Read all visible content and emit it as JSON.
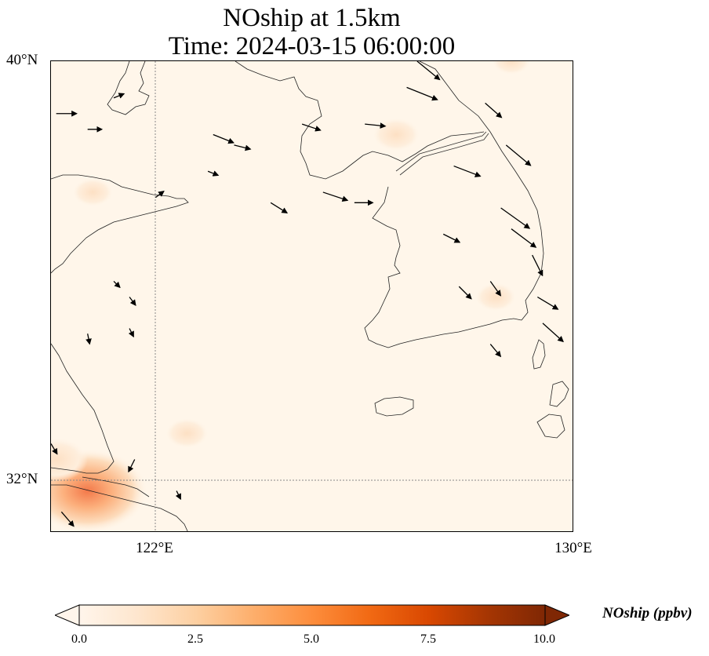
{
  "title": {
    "line1": "NOship at 1.5km",
    "line2": "Time: 2024-03-15 06:00:00"
  },
  "axes": {
    "lat_labels": [
      "40°N",
      "32°N"
    ],
    "lon_labels": [
      "122°E",
      "130°E"
    ],
    "lon_range": [
      120,
      130
    ],
    "lat_range": [
      31,
      40
    ]
  },
  "colorbar": {
    "label": "NOship (ppbv)",
    "ticks": [
      "0.0",
      "2.5",
      "5.0",
      "7.5",
      "10.0"
    ],
    "range": [
      0,
      10
    ],
    "colormap": [
      "#fff5eb",
      "#fee6ce",
      "#fdd0a2",
      "#fdae6b",
      "#fd8d3c",
      "#f16913",
      "#d94801",
      "#a63603",
      "#7f2704"
    ],
    "extend": "both"
  },
  "chart_data": {
    "type": "heatmap",
    "title": "NOship at 1.5km Time: 2024-03-15 06:00:00",
    "variable": "NOship (ppbv)",
    "x": [
      120,
      121,
      122,
      123,
      124,
      125,
      126,
      127,
      128,
      129,
      130
    ],
    "y": [
      40,
      39,
      38,
      37,
      36,
      35,
      34,
      33,
      32,
      31
    ],
    "grid_visible": true,
    "hotspots": [
      {
        "lon": 120.7,
        "lat": 31.8,
        "value": 4.2
      },
      {
        "lon": 120.1,
        "lat": 32.4,
        "value": 1.6
      },
      {
        "lon": 122.6,
        "lat": 32.9,
        "value": 0.7
      },
      {
        "lon": 120.8,
        "lat": 37.5,
        "value": 0.6
      },
      {
        "lon": 126.6,
        "lat": 38.6,
        "value": 0.9
      },
      {
        "lon": 128.5,
        "lat": 35.5,
        "value": 0.6
      },
      {
        "lon": 128.8,
        "lat": 40.0,
        "value": 0.5
      }
    ],
    "wind_vectors": [
      {
        "lon": 120.1,
        "lat": 39.0,
        "u": 1.0,
        "v": 0.0
      },
      {
        "lon": 120.7,
        "lat": 38.7,
        "u": 0.7,
        "v": 0.0
      },
      {
        "lon": 121.2,
        "lat": 39.3,
        "u": 0.5,
        "v": 0.2
      },
      {
        "lon": 123.1,
        "lat": 38.6,
        "u": 1.0,
        "v": -0.4
      },
      {
        "lon": 123.5,
        "lat": 38.4,
        "u": 0.8,
        "v": -0.2
      },
      {
        "lon": 124.8,
        "lat": 38.8,
        "u": 0.9,
        "v": -0.3
      },
      {
        "lon": 126.0,
        "lat": 38.8,
        "u": 1.0,
        "v": -0.1
      },
      {
        "lon": 126.8,
        "lat": 39.5,
        "u": 1.5,
        "v": -0.6
      },
      {
        "lon": 127.0,
        "lat": 40.0,
        "u": 1.1,
        "v": -0.9
      },
      {
        "lon": 128.3,
        "lat": 39.2,
        "u": 0.8,
        "v": -0.7
      },
      {
        "lon": 128.7,
        "lat": 38.4,
        "u": 1.2,
        "v": -1.0
      },
      {
        "lon": 127.7,
        "lat": 38.0,
        "u": 1.3,
        "v": -0.5
      },
      {
        "lon": 128.6,
        "lat": 37.2,
        "u": 1.4,
        "v": -1.0
      },
      {
        "lon": 128.8,
        "lat": 36.8,
        "u": 1.2,
        "v": -0.9
      },
      {
        "lon": 127.5,
        "lat": 36.7,
        "u": 0.8,
        "v": -0.4
      },
      {
        "lon": 129.2,
        "lat": 36.3,
        "u": 0.5,
        "v": -1.0
      },
      {
        "lon": 125.2,
        "lat": 37.5,
        "u": 1.2,
        "v": -0.4
      },
      {
        "lon": 125.8,
        "lat": 37.3,
        "u": 0.9,
        "v": 0.0
      },
      {
        "lon": 124.2,
        "lat": 37.3,
        "u": 0.8,
        "v": -0.5
      },
      {
        "lon": 123.0,
        "lat": 37.9,
        "u": 0.5,
        "v": -0.2
      },
      {
        "lon": 122.0,
        "lat": 37.4,
        "u": 0.4,
        "v": 0.3
      },
      {
        "lon": 128.4,
        "lat": 35.8,
        "u": 0.5,
        "v": -0.7
      },
      {
        "lon": 129.3,
        "lat": 35.5,
        "u": 1.0,
        "v": -0.6
      },
      {
        "lon": 129.4,
        "lat": 35.0,
        "u": 1.0,
        "v": -0.9
      },
      {
        "lon": 128.4,
        "lat": 34.6,
        "u": 0.5,
        "v": -0.6
      },
      {
        "lon": 127.8,
        "lat": 35.7,
        "u": 0.6,
        "v": -0.6
      },
      {
        "lon": 121.2,
        "lat": 35.8,
        "u": 0.3,
        "v": -0.3
      },
      {
        "lon": 121.5,
        "lat": 35.5,
        "u": 0.3,
        "v": -0.4
      },
      {
        "lon": 120.7,
        "lat": 34.8,
        "u": 0.1,
        "v": -0.5
      },
      {
        "lon": 121.5,
        "lat": 34.9,
        "u": 0.2,
        "v": -0.4
      },
      {
        "lon": 120.0,
        "lat": 32.7,
        "u": 0.3,
        "v": -0.5
      },
      {
        "lon": 120.2,
        "lat": 31.4,
        "u": 0.6,
        "v": -0.7
      },
      {
        "lon": 121.6,
        "lat": 32.4,
        "u": -0.3,
        "v": -0.6
      },
      {
        "lon": 122.4,
        "lat": 31.8,
        "u": 0.2,
        "v": -0.4
      }
    ]
  }
}
